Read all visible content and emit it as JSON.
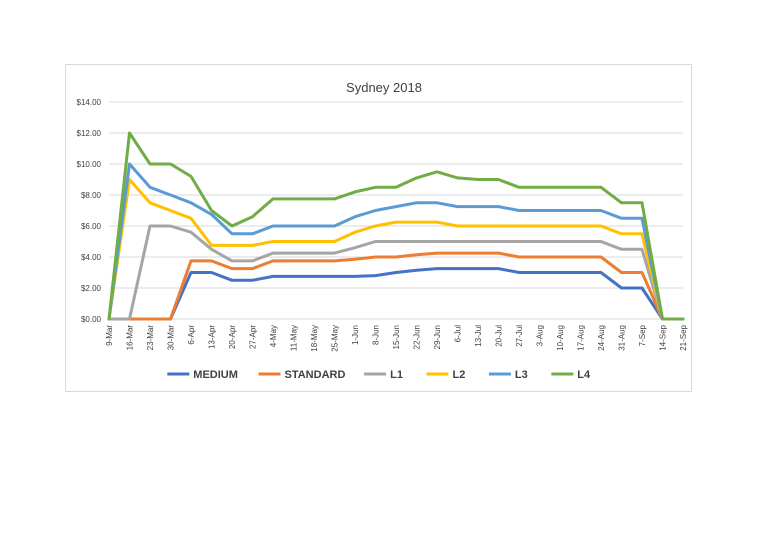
{
  "chart_data": {
    "type": "line",
    "title": "Sydney 2018",
    "xlabel": "",
    "ylabel": "",
    "ylim": [
      0,
      14
    ],
    "yticks": [
      "$0.00",
      "$2.00",
      "$4.00",
      "$6.00",
      "$8.00",
      "$10.00",
      "$12.00",
      "$14.00"
    ],
    "ytick_values": [
      0,
      2,
      4,
      6,
      8,
      10,
      12,
      14
    ],
    "grid": true,
    "legend_position": "bottom",
    "categories": [
      "9-Mar",
      "16-Mar",
      "23-Mar",
      "30-Mar",
      "6-Apr",
      "13-Apr",
      "20-Apr",
      "27-Apr",
      "4-May",
      "11-May",
      "18-May",
      "25-May",
      "1-Jun",
      "8-Jun",
      "15-Jun",
      "22-Jun",
      "29-Jun",
      "6-Jul",
      "13-Jul",
      "20-Jul",
      "27-Jul",
      "3-Aug",
      "10-Aug",
      "17-Aug",
      "24-Aug",
      "31-Aug",
      "7-Sep",
      "14-Sep",
      "21-Sep"
    ],
    "series": [
      {
        "name": "MEDIUM",
        "color": "#4472c4",
        "values": [
          0,
          0,
          0,
          0,
          3,
          3,
          2.5,
          2.5,
          2.75,
          2.75,
          2.75,
          2.75,
          2.75,
          2.8,
          3,
          3.15,
          3.25,
          3.25,
          3.25,
          3.25,
          3,
          3,
          3,
          3,
          3,
          2,
          2,
          0,
          0
        ]
      },
      {
        "name": "STANDARD",
        "color": "#ed7d31",
        "values": [
          0,
          0,
          0,
          0,
          3.75,
          3.75,
          3.25,
          3.25,
          3.75,
          3.75,
          3.75,
          3.75,
          3.85,
          4,
          4,
          4.15,
          4.25,
          4.25,
          4.25,
          4.25,
          4,
          4,
          4,
          4,
          4,
          3,
          3,
          0,
          0
        ]
      },
      {
        "name": "L1",
        "color": "#a5a5a5",
        "values": [
          0,
          0,
          6,
          6,
          5.6,
          4.5,
          3.75,
          3.75,
          4.25,
          4.25,
          4.25,
          4.25,
          4.6,
          5,
          5,
          5,
          5,
          5,
          5,
          5,
          5,
          5,
          5,
          5,
          5,
          4.5,
          4.5,
          0,
          0
        ]
      },
      {
        "name": "L2",
        "color": "#ffc000",
        "values": [
          0,
          9,
          7.5,
          7,
          6.5,
          4.75,
          4.75,
          4.75,
          5,
          5,
          5,
          5,
          5.6,
          6,
          6.25,
          6.25,
          6.25,
          6,
          6,
          6,
          6,
          6,
          6,
          6,
          6,
          5.5,
          5.5,
          0,
          0
        ]
      },
      {
        "name": "L3",
        "color": "#5b9bd5",
        "values": [
          0,
          10,
          8.5,
          8,
          7.5,
          6.75,
          5.5,
          5.5,
          6,
          6,
          6,
          6,
          6.6,
          7,
          7.25,
          7.5,
          7.5,
          7.25,
          7.25,
          7.25,
          7,
          7,
          7,
          7,
          7,
          6.5,
          6.5,
          0,
          0
        ]
      },
      {
        "name": "L4",
        "color": "#70ad47",
        "values": [
          0,
          12,
          10,
          10,
          9.2,
          7,
          6,
          6.6,
          7.75,
          7.75,
          7.75,
          7.75,
          8.2,
          8.5,
          8.5,
          9.1,
          9.5,
          9.1,
          9,
          9,
          8.5,
          8.5,
          8.5,
          8.5,
          8.5,
          7.5,
          7.5,
          0,
          0
        ]
      }
    ]
  }
}
